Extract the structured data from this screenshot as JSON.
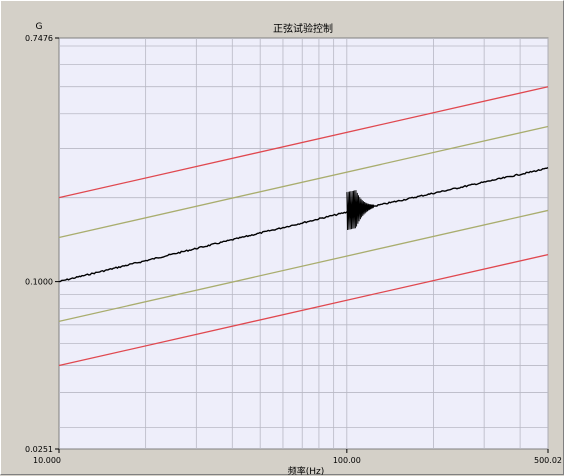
{
  "chart_data": {
    "type": "line",
    "title": "正弦试验控制",
    "ylabel": "G",
    "xlabel": "频率(Hz)",
    "x_scale": "log",
    "y_scale": "log",
    "xlim": [
      10.0,
      500.02
    ],
    "ylim": [
      0.0251,
      0.7476
    ],
    "x_ticks": [
      {
        "value": 10.0,
        "label": "10.000"
      },
      {
        "value": 100.0,
        "label": "100.00"
      },
      {
        "value": 500.02,
        "label": "500.02"
      }
    ],
    "y_ticks": [
      {
        "value": 0.7476,
        "label": "0.7476"
      },
      {
        "value": 0.1,
        "label": "0.1000"
      },
      {
        "value": 0.0251,
        "label": "0.0251"
      }
    ],
    "grid": true,
    "colors": {
      "plot_bg": "#eeeefa",
      "grid": "#b8b8c4",
      "alarm": "#e0484f",
      "abort": "#a9ad6e",
      "control": "#000000"
    },
    "series": [
      {
        "role": "upper-abort",
        "color": "#e0484f",
        "x": [
          10.0,
          500.02
        ],
        "y": [
          0.2,
          0.5
        ]
      },
      {
        "role": "upper-alarm",
        "color": "#a9ad6e",
        "x": [
          10.0,
          500.02
        ],
        "y": [
          0.144,
          0.36
        ]
      },
      {
        "role": "control",
        "color": "#000000",
        "x": [
          10.0,
          100.0,
          500.02
        ],
        "y": [
          0.1,
          0.1775,
          0.255
        ]
      },
      {
        "role": "lower-alarm",
        "color": "#a9ad6e",
        "x": [
          10.0,
          500.02
        ],
        "y": [
          0.072,
          0.18
        ]
      },
      {
        "role": "lower-abort",
        "color": "#e0484f",
        "x": [
          10.0,
          500.02
        ],
        "y": [
          0.05,
          0.125
        ]
      }
    ]
  }
}
